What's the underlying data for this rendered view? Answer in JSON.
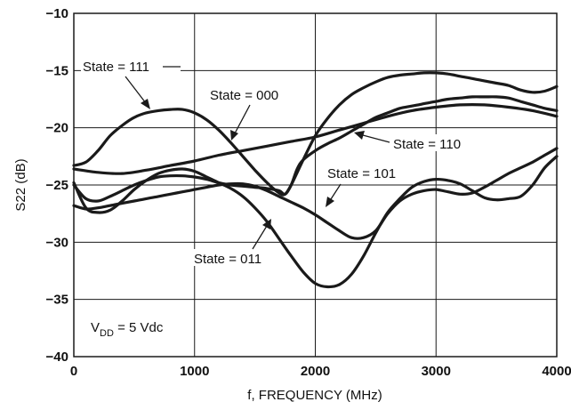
{
  "chart_data": {
    "type": "line",
    "xlabel": "f, FREQUENCY (MHz)",
    "ylabel": "S22 (dB)",
    "xlim": [
      0,
      4000
    ],
    "ylim": [
      -40,
      -10
    ],
    "xticks": [
      0,
      1000,
      2000,
      3000,
      4000
    ],
    "yticks": [
      -10,
      -15,
      -20,
      -25,
      -30,
      -35,
      -40
    ],
    "xtick_labels": [
      "0",
      "1000",
      "2000",
      "3000",
      "4000"
    ],
    "ytick_labels": [
      "−10",
      "−15",
      "−20",
      "−25",
      "−30",
      "−35",
      "−40"
    ],
    "grid": true,
    "condition_label": {
      "main": "V",
      "sub": "DD",
      "rest": " = 5 Vdc"
    },
    "series": [
      {
        "name": "State = 111",
        "x": [
          0,
          100,
          200,
          300,
          400,
          500,
          600,
          700,
          800,
          900,
          1000,
          1100,
          1200,
          1300,
          1400,
          1500,
          1600,
          1700,
          1750,
          1800,
          1900,
          2000,
          2100,
          2200,
          2300,
          2400,
          2500,
          2600,
          2700,
          2800,
          2900,
          3000,
          3100,
          3200,
          3300,
          3400,
          3500,
          3600,
          3700,
          3800,
          3900,
          4000
        ],
        "y": [
          -23.3,
          -23.0,
          -22.0,
          -20.7,
          -19.8,
          -19.1,
          -18.7,
          -18.5,
          -18.4,
          -18.4,
          -18.7,
          -19.3,
          -20.2,
          -21.3,
          -22.5,
          -23.7,
          -24.8,
          -25.7,
          -25.8,
          -25.0,
          -22.8,
          -20.7,
          -19.2,
          -18.0,
          -17.1,
          -16.5,
          -16.0,
          -15.6,
          -15.4,
          -15.3,
          -15.2,
          -15.2,
          -15.3,
          -15.5,
          -15.7,
          -15.9,
          -16.1,
          -16.3,
          -16.7,
          -16.9,
          -16.8,
          -16.4
        ]
      },
      {
        "name": "State = 000",
        "x": [
          0,
          200,
          400,
          600,
          800,
          1000,
          1200,
          1400,
          1600,
          1800,
          2000,
          2200,
          2400,
          2600,
          2800,
          3000,
          3200,
          3400,
          3600,
          3800,
          4000
        ],
        "y": [
          -23.6,
          -23.9,
          -24.0,
          -23.7,
          -23.3,
          -22.9,
          -22.4,
          -22.0,
          -21.6,
          -21.2,
          -20.8,
          -20.2,
          -19.6,
          -19.0,
          -18.5,
          -18.2,
          -18.0,
          -18.0,
          -18.2,
          -18.5,
          -19.0
        ]
      },
      {
        "name": "State = 110",
        "x": [
          0,
          100,
          200,
          300,
          400,
          500,
          600,
          700,
          800,
          900,
          1000,
          1100,
          1200,
          1300,
          1400,
          1500,
          1600,
          1700,
          1750,
          1800,
          1850,
          1900,
          2000,
          2100,
          2200,
          2300,
          2400,
          2500,
          2600,
          2700,
          2800,
          2900,
          3000,
          3100,
          3200,
          3300,
          3400,
          3500,
          3600,
          3700,
          3800,
          3900,
          4000
        ],
        "y": [
          -25.0,
          -26.2,
          -26.4,
          -26.0,
          -25.5,
          -25.0,
          -24.6,
          -24.3,
          -24.2,
          -24.2,
          -24.3,
          -24.5,
          -24.8,
          -25.0,
          -25.1,
          -25.2,
          -25.3,
          -25.5,
          -25.8,
          -25.0,
          -23.6,
          -22.8,
          -22.0,
          -21.4,
          -20.9,
          -20.3,
          -19.7,
          -19.1,
          -18.7,
          -18.3,
          -18.1,
          -17.9,
          -17.7,
          -17.5,
          -17.4,
          -17.3,
          -17.3,
          -17.3,
          -17.4,
          -17.7,
          -18.0,
          -18.3,
          -18.5
        ]
      },
      {
        "name": "State = 101",
        "x": [
          0,
          100,
          200,
          300,
          400,
          500,
          600,
          700,
          800,
          900,
          1000,
          1100,
          1200,
          1300,
          1400,
          1500,
          1600,
          1700,
          1800,
          1900,
          2000,
          2100,
          2200,
          2300,
          2400,
          2500,
          2600,
          2700,
          2800,
          2900,
          3000,
          3100,
          3200,
          3300,
          3400,
          3500,
          3600,
          3700,
          3800,
          3900,
          4000
        ],
        "y": [
          -26.8,
          -27.1,
          -27.0,
          -26.8,
          -26.6,
          -26.4,
          -26.2,
          -26.0,
          -25.8,
          -25.6,
          -25.4,
          -25.2,
          -25.0,
          -24.9,
          -24.9,
          -25.1,
          -25.5,
          -26.0,
          -26.5,
          -27.0,
          -27.6,
          -28.3,
          -29.0,
          -29.6,
          -29.6,
          -29.0,
          -27.5,
          -26.4,
          -25.8,
          -25.5,
          -25.4,
          -25.6,
          -25.8,
          -25.7,
          -25.2,
          -24.6,
          -24.0,
          -23.5,
          -23.0,
          -22.4,
          -21.8
        ]
      },
      {
        "name": "State = 011",
        "x": [
          0,
          100,
          200,
          300,
          400,
          500,
          600,
          700,
          800,
          900,
          1000,
          1100,
          1200,
          1300,
          1400,
          1500,
          1600,
          1700,
          1800,
          1900,
          2000,
          2100,
          2200,
          2300,
          2400,
          2500,
          2600,
          2700,
          2800,
          2900,
          3000,
          3100,
          3200,
          3300,
          3400,
          3500,
          3600,
          3700,
          3800,
          3900,
          4000
        ],
        "y": [
          -24.8,
          -27.0,
          -27.4,
          -27.2,
          -26.4,
          -25.4,
          -24.6,
          -24.0,
          -23.7,
          -23.6,
          -23.8,
          -24.3,
          -24.8,
          -25.3,
          -26.0,
          -27.0,
          -28.2,
          -29.7,
          -31.2,
          -32.6,
          -33.6,
          -33.9,
          -33.7,
          -32.8,
          -31.2,
          -29.2,
          -27.4,
          -26.2,
          -25.2,
          -24.7,
          -24.5,
          -24.6,
          -24.9,
          -25.5,
          -26.1,
          -26.3,
          -26.2,
          -26.0,
          -25.0,
          -23.5,
          -22.5
        ]
      }
    ],
    "annotations": [
      {
        "text": "State = 111",
        "target_x": 620,
        "target_y": -18.7
      },
      {
        "text": "State = 000",
        "target_x": 1350,
        "target_y": -22.2
      },
      {
        "text": "State = 110",
        "target_x": 2320,
        "target_y": -20.9
      },
      {
        "text": "State = 101",
        "target_x": 2150,
        "target_y": -27.9
      },
      {
        "text": "State = 011",
        "target_x": 1620,
        "target_y": -28.5
      }
    ]
  }
}
